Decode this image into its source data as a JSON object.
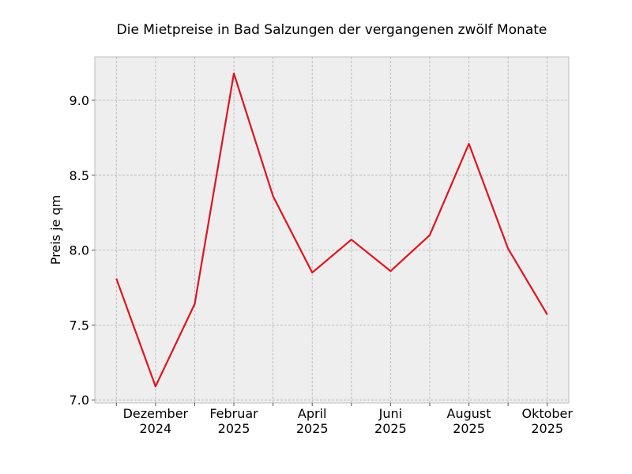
{
  "chart_data": {
    "type": "line",
    "title": "Die Mietpreise in Bad Salzungen der vergangenen zwölf Monate",
    "y_label": "Preis je qm",
    "categories": [
      null,
      "Dezember\n2024",
      null,
      "Februar\n2025",
      null,
      "April\n2025",
      null,
      "Juni\n2025",
      null,
      "August\n2025",
      null,
      "Oktober\n2025"
    ],
    "series": [
      {
        "name": "Preis je qm",
        "color": "#e0141e",
        "values": [
          7.81,
          7.09,
          7.64,
          9.18,
          8.36,
          7.85,
          8.07,
          7.86,
          8.1,
          8.71,
          8.01,
          7.57
        ]
      }
    ],
    "ylim": [
      6.98,
      9.29
    ],
    "yticks": [
      {
        "value": 7,
        "label": "7.0"
      },
      {
        "value": 7.5,
        "label": "7.5"
      },
      {
        "value": 8,
        "label": "8.0"
      },
      {
        "value": 8.5,
        "label": "8.5"
      },
      {
        "value": 9,
        "label": "9.0"
      }
    ],
    "grid": true
  }
}
